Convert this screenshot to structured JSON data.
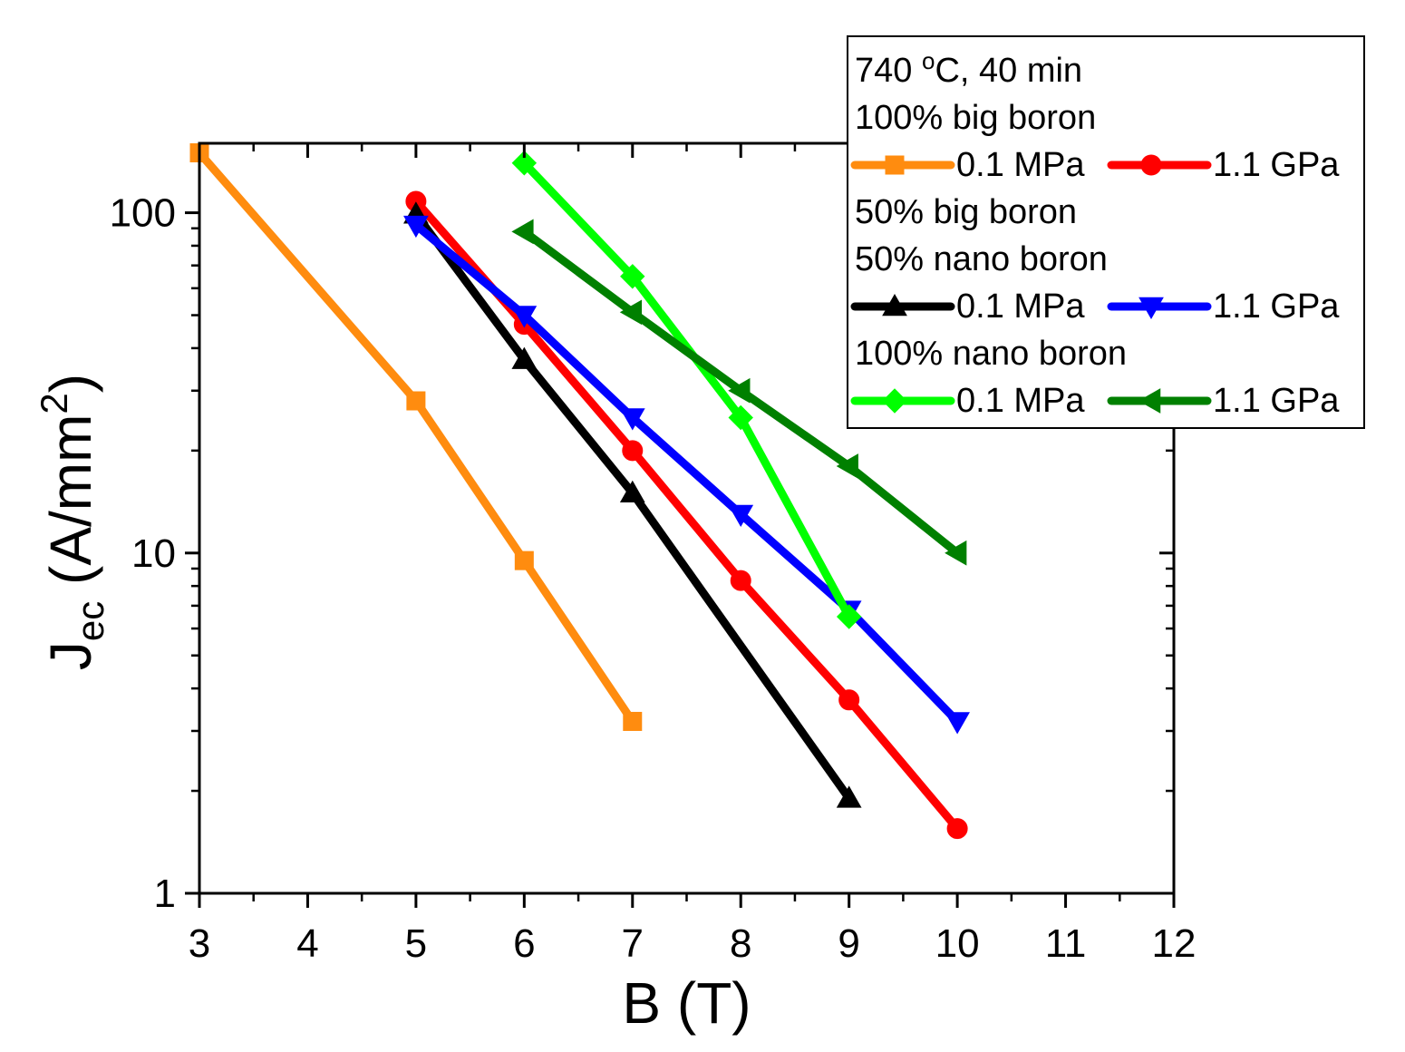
{
  "chart_data": {
    "type": "line",
    "x_scale": "linear",
    "y_scale": "log",
    "xlabel": "B (T)",
    "ylabel": {
      "main": "J",
      "subscript": "ec",
      "unit_open": " (A/mm",
      "unit_sup": "2",
      "unit_close": ")"
    },
    "xlim": [
      3,
      12
    ],
    "ylim": [
      1,
      160
    ],
    "x_ticks": [
      3,
      4,
      5,
      6,
      7,
      8,
      9,
      10,
      11,
      12
    ],
    "x_tick_labels": [
      "3",
      "4",
      "5",
      "6",
      "7",
      "8",
      "9",
      "10",
      "11",
      "12"
    ],
    "y_ticks": [
      1,
      10,
      100
    ],
    "y_tick_labels": [
      "1",
      "10",
      "100"
    ],
    "grid": false,
    "legend": {
      "position": "top-right",
      "header_lines": [
        "740 °C, 40 min"
      ],
      "groups": [
        {
          "title_lines": [
            "100% big boron"
          ],
          "entries": [
            0,
            1
          ]
        },
        {
          "title_lines": [
            "50% big boron",
            "50% nano boron"
          ],
          "entries": [
            2,
            3
          ]
        },
        {
          "title_lines": [
            "100% nano boron"
          ],
          "entries": [
            4,
            5
          ]
        }
      ]
    },
    "series": [
      {
        "name": "0.1 MPa",
        "group": "100% big boron",
        "color": "#ff8c0f",
        "marker": "square",
        "x": [
          3,
          5,
          6,
          7
        ],
        "y": [
          150,
          28,
          9.5,
          3.2
        ]
      },
      {
        "name": "1.1 GPa",
        "group": "100% big boron",
        "color": "#ff0000",
        "marker": "circle",
        "x": [
          5,
          6,
          7,
          8,
          9,
          10
        ],
        "y": [
          108,
          47,
          20,
          8.3,
          3.7,
          1.55
        ]
      },
      {
        "name": "0.1 MPa",
        "group": "50% big boron 50% nano boron",
        "color": "#000000",
        "marker": "triangle-up",
        "x": [
          5,
          6,
          7,
          9
        ],
        "y": [
          99,
          37,
          15,
          1.9
        ]
      },
      {
        "name": "1.1 GPa",
        "group": "50% big boron 50% nano boron",
        "color": "#0000ff",
        "marker": "triangle-down",
        "x": [
          5,
          6,
          7,
          8,
          9,
          10
        ],
        "y": [
          92,
          50,
          25,
          13,
          6.8,
          3.2
        ]
      },
      {
        "name": "0.1 MPa",
        "group": "100% nano boron",
        "color": "#00ff00",
        "marker": "diamond",
        "x": [
          6,
          7,
          8,
          9
        ],
        "y": [
          140,
          65,
          25,
          6.5
        ]
      },
      {
        "name": "1.1 GPa",
        "group": "100% nano boron",
        "color": "#008000",
        "marker": "triangle-left",
        "x": [
          6,
          7,
          8,
          9,
          10
        ],
        "y": [
          88,
          51,
          30,
          18,
          10
        ]
      }
    ]
  }
}
